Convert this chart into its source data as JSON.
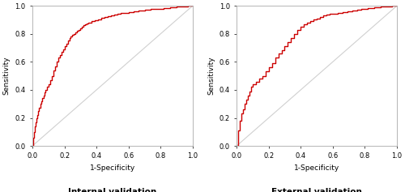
{
  "fig_width": 5.0,
  "fig_height": 2.37,
  "dpi": 100,
  "background_color": "#ffffff",
  "plot_bg_color": "#ffffff",
  "roc_color": "#cc0000",
  "roc_linewidth": 1.0,
  "diag_color": "#d0d0d0",
  "diag_linewidth": 0.8,
  "xlabel": "1-Specificity",
  "ylabel": "Sensitivity",
  "title_left": "Internal validation",
  "title_right": "External validation",
  "title_fontsize": 7.5,
  "title_fontweight": "bold",
  "axis_label_fontsize": 6.5,
  "tick_fontsize": 6,
  "xlim": [
    0.0,
    1.0
  ],
  "ylim": [
    0.0,
    1.0
  ],
  "xticks": [
    0.0,
    0.2,
    0.4,
    0.6,
    0.8,
    1.0
  ],
  "yticks": [
    0.0,
    0.2,
    0.4,
    0.6,
    0.8,
    1.0
  ],
  "internal_fpr": [
    0.0,
    0.005,
    0.01,
    0.015,
    0.02,
    0.025,
    0.03,
    0.035,
    0.04,
    0.05,
    0.055,
    0.06,
    0.07,
    0.075,
    0.08,
    0.09,
    0.1,
    0.11,
    0.12,
    0.13,
    0.14,
    0.15,
    0.16,
    0.17,
    0.18,
    0.19,
    0.2,
    0.21,
    0.22,
    0.23,
    0.24,
    0.25,
    0.26,
    0.27,
    0.28,
    0.29,
    0.3,
    0.31,
    0.32,
    0.33,
    0.34,
    0.35,
    0.37,
    0.39,
    0.41,
    0.43,
    0.45,
    0.47,
    0.49,
    0.51,
    0.53,
    0.55,
    0.57,
    0.6,
    0.63,
    0.66,
    0.7,
    0.74,
    0.78,
    0.82,
    0.86,
    0.9,
    0.94,
    0.97,
    1.0
  ],
  "internal_tpr": [
    0.0,
    0.06,
    0.1,
    0.14,
    0.17,
    0.2,
    0.22,
    0.25,
    0.27,
    0.3,
    0.32,
    0.34,
    0.36,
    0.38,
    0.4,
    0.42,
    0.44,
    0.47,
    0.5,
    0.54,
    0.57,
    0.6,
    0.63,
    0.65,
    0.67,
    0.69,
    0.71,
    0.73,
    0.75,
    0.77,
    0.78,
    0.79,
    0.8,
    0.81,
    0.82,
    0.83,
    0.84,
    0.85,
    0.86,
    0.87,
    0.875,
    0.882,
    0.89,
    0.898,
    0.905,
    0.912,
    0.918,
    0.924,
    0.93,
    0.936,
    0.941,
    0.946,
    0.951,
    0.956,
    0.961,
    0.966,
    0.97,
    0.975,
    0.98,
    0.985,
    0.989,
    0.993,
    0.997,
    0.999,
    1.0
  ],
  "external_fpr": [
    0.0,
    0.01,
    0.02,
    0.03,
    0.04,
    0.05,
    0.06,
    0.07,
    0.08,
    0.09,
    0.1,
    0.12,
    0.14,
    0.16,
    0.18,
    0.2,
    0.22,
    0.24,
    0.26,
    0.28,
    0.3,
    0.32,
    0.34,
    0.36,
    0.38,
    0.4,
    0.42,
    0.44,
    0.46,
    0.48,
    0.5,
    0.52,
    0.54,
    0.56,
    0.58,
    0.6,
    0.63,
    0.66,
    0.69,
    0.72,
    0.75,
    0.78,
    0.82,
    0.86,
    0.9,
    0.94,
    0.97,
    1.0
  ],
  "external_tpr": [
    0.0,
    0.11,
    0.18,
    0.23,
    0.26,
    0.3,
    0.33,
    0.36,
    0.39,
    0.42,
    0.44,
    0.46,
    0.48,
    0.5,
    0.53,
    0.56,
    0.59,
    0.63,
    0.66,
    0.68,
    0.71,
    0.74,
    0.77,
    0.8,
    0.83,
    0.85,
    0.87,
    0.88,
    0.89,
    0.9,
    0.91,
    0.92,
    0.93,
    0.935,
    0.94,
    0.945,
    0.95,
    0.956,
    0.962,
    0.968,
    0.974,
    0.98,
    0.985,
    0.99,
    0.993,
    0.997,
    0.999,
    1.0
  ]
}
